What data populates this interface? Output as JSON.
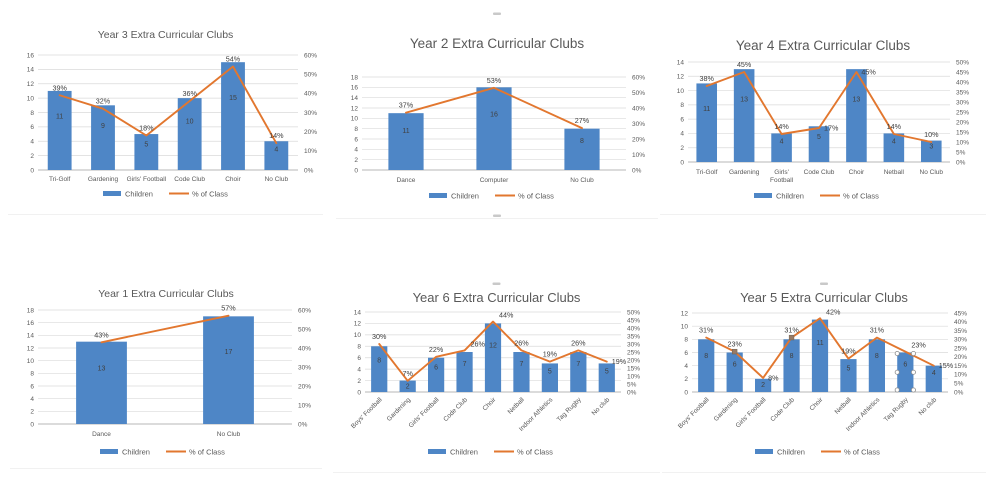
{
  "colors": {
    "bar": "#4e86c6",
    "line": "#e2772f",
    "title_text": "#595959",
    "axis_text": "#595959",
    "value_label_text": "#404040",
    "percent_label_text": "#3d3d3d",
    "gridline": "#dadada",
    "axis_line": "#b7b7b7",
    "selection_handle_fill": "#ffffff",
    "selection_handle_stroke": "#8c8c8c",
    "point_marker": "#977b66",
    "chart_handle_dash": "#c9c9c9"
  },
  "legend": {
    "children": "Children",
    "percent": "% of Class"
  },
  "chart_data": [
    {
      "id": "year3",
      "type": "bar+line",
      "title": "Year 3 Extra Curricular Clubs",
      "categories": [
        "Tri-Golf",
        "Gardening",
        "Girls' Football",
        "Code Club",
        "Choir",
        "No Club"
      ],
      "series": [
        {
          "name": "Children",
          "type": "bar",
          "axis": "left",
          "values": [
            11,
            9,
            5,
            10,
            15,
            4
          ]
        },
        {
          "name": "% of Class",
          "type": "line",
          "axis": "right",
          "values": [
            39,
            32,
            18,
            36,
            54,
            14
          ],
          "labels": [
            "39%",
            "32%",
            "18%",
            "36%",
            "54%",
            "14%"
          ],
          "label_pos": [
            "a",
            "a",
            "a",
            "a",
            "a",
            "a"
          ]
        }
      ],
      "left_axis": {
        "min": 0,
        "max": 16,
        "step": 2
      },
      "right_axis": {
        "min": 0,
        "max": 60,
        "step": 10,
        "suffix": "%"
      },
      "grid": true,
      "legend_position": "bottom",
      "rotated_category_labels": false
    },
    {
      "id": "year2",
      "type": "bar+line",
      "title": "Year 2 Extra Curricular Clubs",
      "categories": [
        "Dance",
        "Computer",
        "No Club"
      ],
      "series": [
        {
          "name": "Children",
          "type": "bar",
          "axis": "left",
          "values": [
            11,
            16,
            8
          ]
        },
        {
          "name": "% of Class",
          "type": "line",
          "axis": "right",
          "values": [
            37,
            53,
            27
          ],
          "labels": [
            "37%",
            "53%",
            "27%"
          ],
          "label_pos": [
            "a",
            "a",
            "a"
          ]
        }
      ],
      "left_axis": {
        "min": 0,
        "max": 18,
        "step": 2
      },
      "right_axis": {
        "min": 0,
        "max": 60,
        "step": 10,
        "suffix": "%"
      },
      "grid": true,
      "legend_position": "bottom",
      "rotated_category_labels": false
    },
    {
      "id": "year4",
      "type": "bar+line",
      "title": "Year 4 Extra Curricular Clubs",
      "categories": [
        "Tri-Golf",
        "Gardening",
        "Girls' Football",
        "Code Club",
        "Choir",
        "Netball",
        "No Club"
      ],
      "series": [
        {
          "name": "Children",
          "type": "bar",
          "axis": "left",
          "values": [
            11,
            13,
            4,
            5,
            13,
            4,
            3
          ]
        },
        {
          "name": "% of Class",
          "type": "line",
          "axis": "right",
          "values": [
            38,
            45,
            14,
            17,
            45,
            14,
            10
          ],
          "labels": [
            "38%",
            "45%",
            "14%",
            "17%",
            "45%",
            "14%",
            "10%"
          ],
          "label_pos": [
            "a",
            "a",
            "a",
            "r",
            "r",
            "a",
            "a"
          ]
        }
      ],
      "left_axis": {
        "min": 0,
        "max": 14,
        "step": 2
      },
      "right_axis": {
        "min": 0,
        "max": 50,
        "step": 5,
        "suffix": "%"
      },
      "grid": true,
      "legend_position": "bottom",
      "rotated_category_labels": false
    },
    {
      "id": "year1",
      "type": "bar+line",
      "title": "Year 1 Extra Curricular Clubs",
      "categories": [
        "Dance",
        "No Club"
      ],
      "series": [
        {
          "name": "Children",
          "type": "bar",
          "axis": "left",
          "values": [
            13,
            17
          ]
        },
        {
          "name": "% of Class",
          "type": "line",
          "axis": "right",
          "values": [
            43,
            57
          ],
          "labels": [
            "43%",
            "57%"
          ],
          "label_pos": [
            "a",
            "a"
          ]
        }
      ],
      "left_axis": {
        "min": 0,
        "max": 18,
        "step": 2
      },
      "right_axis": {
        "min": 0,
        "max": 60,
        "step": 10,
        "suffix": "%"
      },
      "grid": true,
      "legend_position": "bottom",
      "rotated_category_labels": false
    },
    {
      "id": "year6",
      "type": "bar+line",
      "title": "Year 6 Extra Curricular Clubs",
      "categories": [
        "Boys' Football",
        "Gardening",
        "Girls' Football",
        "Code Club",
        "Choir",
        "Netball",
        "Indoor Athletics",
        "Tag Rugby",
        "No club"
      ],
      "series": [
        {
          "name": "Children",
          "type": "bar",
          "axis": "left",
          "values": [
            8,
            2,
            6,
            7,
            12,
            7,
            5,
            7,
            5
          ]
        },
        {
          "name": "% of Class",
          "type": "line",
          "axis": "right",
          "values": [
            30,
            7,
            22,
            26,
            44,
            26,
            19,
            26,
            19
          ],
          "labels": [
            "30%",
            "7%",
            "22%",
            "26%",
            "44%",
            "26%",
            "19%",
            "26%",
            "19%"
          ],
          "label_pos": [
            "a",
            "a",
            "a",
            "ar",
            "ar",
            "a",
            "a",
            "a",
            "r"
          ]
        }
      ],
      "left_axis": {
        "min": 0,
        "max": 14,
        "step": 2
      },
      "right_axis": {
        "min": 0,
        "max": 50,
        "step": 5,
        "suffix": "%"
      },
      "grid": true,
      "legend_position": "bottom",
      "rotated_category_labels": true
    },
    {
      "id": "year5",
      "type": "bar+line",
      "title": "Year 5 Extra Curricular Clubs",
      "categories": [
        "Boys' Football",
        "Gardening",
        "Girls' Football",
        "Code Club",
        "Choir",
        "Netball",
        "Indoor Athletics",
        "Tag Rugby",
        "No club"
      ],
      "series": [
        {
          "name": "Children",
          "type": "bar",
          "axis": "left",
          "values": [
            8,
            6,
            2,
            8,
            11,
            5,
            8,
            6,
            4
          ]
        },
        {
          "name": "% of Class",
          "type": "line",
          "axis": "right",
          "values": [
            31,
            23,
            8,
            31,
            42,
            19,
            31,
            23,
            15
          ],
          "labels": [
            "31%",
            "23%",
            "8%",
            "31%",
            "42%",
            "19%",
            "31%",
            "23%",
            "15%"
          ],
          "label_pos": [
            "a",
            "a",
            "r",
            "a",
            "ar",
            "a",
            "a",
            "ar",
            "r"
          ]
        }
      ],
      "left_axis": {
        "min": 0,
        "max": 12,
        "step": 2
      },
      "right_axis": {
        "min": 0,
        "max": 45,
        "step": 5,
        "suffix": "%"
      },
      "grid": true,
      "legend_position": "bottom",
      "rotated_category_labels": true,
      "selected_bar_index": 7,
      "point_marker_indices": [
        1,
        3
      ]
    }
  ]
}
